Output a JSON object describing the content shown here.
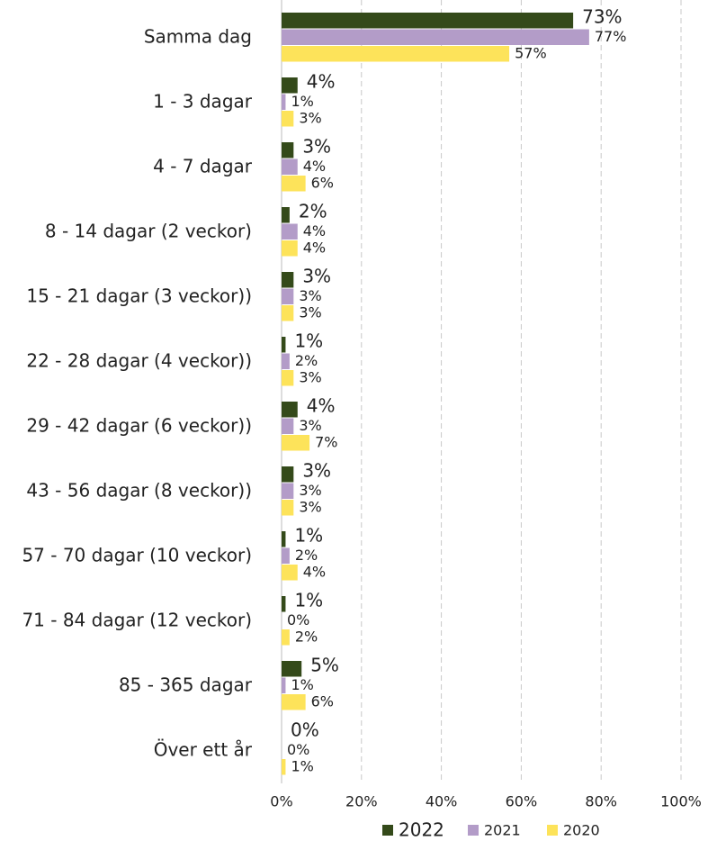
{
  "chart_data": {
    "type": "hbar",
    "categories": [
      "Samma dag",
      "1 - 3 dagar",
      "4 - 7 dagar",
      "8 - 14 dagar (2 veckor)",
      "15 - 21 dagar (3 veckor))",
      "22 - 28 dagar (4 veckor))",
      "29 - 42 dagar (6 veckor))",
      "43 - 56 dagar (8 veckor))",
      "57 - 70 dagar (10 veckor)",
      "71 - 84 dagar (12 veckor)",
      "85 - 365 dagar",
      "Över ett år"
    ],
    "series": [
      {
        "name": "2022",
        "color": "#344a1a",
        "values": [
          73,
          4,
          3,
          2,
          3,
          1,
          4,
          3,
          1,
          1,
          5,
          0
        ],
        "value_labels": [
          "73%",
          "4%",
          "3%",
          "2%",
          "3%",
          "1%",
          "4%",
          "3%",
          "1%",
          "1%",
          "5%",
          "0%"
        ]
      },
      {
        "name": "2021",
        "color": "#b39cc8",
        "values": [
          77,
          1,
          4,
          4,
          3,
          2,
          3,
          3,
          2,
          0,
          1,
          0
        ],
        "value_labels": [
          "77%",
          "1%",
          "4%",
          "4%",
          "3%",
          "2%",
          "3%",
          "3%",
          "2%",
          "0%",
          "1%",
          "0%"
        ]
      },
      {
        "name": "2020",
        "color": "#fde35a",
        "values": [
          57,
          3,
          6,
          4,
          3,
          3,
          7,
          3,
          4,
          2,
          6,
          1
        ],
        "value_labels": [
          "57%",
          "3%",
          "6%",
          "4%",
          "3%",
          "3%",
          "7%",
          "3%",
          "4%",
          "2%",
          "6%",
          "1%"
        ]
      }
    ],
    "xlim": [
      0,
      100
    ],
    "xticks": [
      {
        "value": 0,
        "label": "0%"
      },
      {
        "value": 20,
        "label": "20%"
      },
      {
        "value": 40,
        "label": "40%"
      },
      {
        "value": 60,
        "label": "60%"
      },
      {
        "value": 80,
        "label": "80%"
      },
      {
        "value": 100,
        "label": "100%"
      }
    ],
    "grid": true,
    "legend": "bottom"
  }
}
